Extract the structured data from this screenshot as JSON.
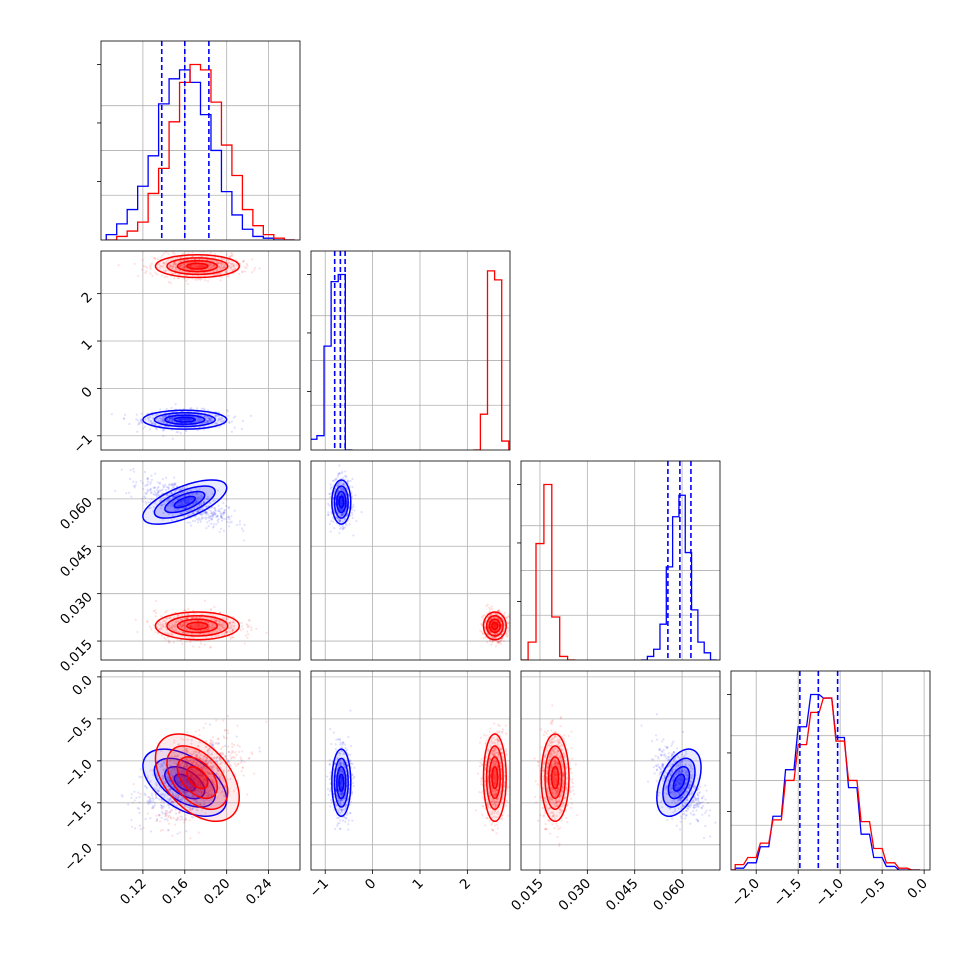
{
  "colors": {
    "series_a": "#ff0000",
    "series_b": "#0000ff",
    "grid": "#b0b0b0",
    "frame": "#000000"
  },
  "chart_data": {
    "type": "corner",
    "grid": true,
    "variables": [
      {
        "ticks": [
          "0.12",
          "0.16",
          "0.20",
          "0.24"
        ],
        "tick_values": [
          0.12,
          0.16,
          0.2,
          0.24
        ],
        "range": [
          0.08,
          0.27
        ]
      },
      {
        "ticks": [
          "−1",
          "0",
          "1",
          "2"
        ],
        "tick_values": [
          -1,
          0,
          1,
          2
        ],
        "range": [
          -1.3,
          2.9
        ]
      },
      {
        "ticks": [
          "0.015",
          "0.030",
          "0.045",
          "0.060"
        ],
        "tick_values": [
          0.015,
          0.03,
          0.045,
          0.06
        ],
        "range": [
          0.009,
          0.072
        ]
      },
      {
        "ticks": [
          "−2.0",
          "−1.5",
          "−1.0",
          "−0.5",
          "0.0"
        ],
        "tick_values": [
          -2.0,
          -1.5,
          -1.0,
          -0.5,
          0.0
        ],
        "range": [
          -2.3,
          0.07
        ]
      }
    ],
    "series": [
      {
        "color": "#ff0000",
        "means": [
          0.172,
          2.58,
          0.0198,
          -1.2
        ],
        "sds": [
          0.02,
          0.12,
          0.0022,
          0.26
        ],
        "corr": {
          "0-3": 0.45,
          "0-2": 0.0,
          "1-3": 0.0,
          "2-3": 0.0,
          "0-1": 0.0,
          "1-2": 0.0
        }
      },
      {
        "color": "#0000ff",
        "means": [
          0.16,
          -0.66,
          0.059,
          -1.26
        ],
        "sds": [
          0.02,
          0.1,
          0.0035,
          0.2
        ],
        "corr": {
          "0-2": -0.65,
          "0-3": 0.5,
          "2-3": -0.45,
          "0-1": 0.0,
          "1-2": 0.0,
          "1-3": 0.0
        }
      }
    ],
    "quantile_lines": [
      {
        "ticks_var": 0,
        "values": [
          0.138,
          0.16,
          0.183
        ]
      },
      {
        "ticks_var": 1,
        "values": [
          -0.8,
          -0.68,
          -0.58
        ]
      },
      {
        "ticks_var": 2,
        "values": [
          0.0555,
          0.0593,
          0.0628
        ]
      },
      {
        "ticks_var": 3,
        "values": [
          -1.48,
          -1.26,
          -1.03
        ]
      }
    ],
    "histograms": [
      {
        "series_a": [
          [
            0.09,
            0
          ],
          [
            0.1,
            0.02
          ],
          [
            0.11,
            0.05
          ],
          [
            0.12,
            0.1
          ],
          [
            0.13,
            0.26
          ],
          [
            0.14,
            0.4
          ],
          [
            0.15,
            0.66
          ],
          [
            0.16,
            0.88
          ],
          [
            0.17,
            0.98
          ],
          [
            0.18,
            0.95
          ],
          [
            0.19,
            0.77
          ],
          [
            0.2,
            0.53
          ],
          [
            0.21,
            0.36
          ],
          [
            0.22,
            0.17
          ],
          [
            0.23,
            0.08
          ],
          [
            0.24,
            0.03
          ],
          [
            0.25,
            0.01
          ],
          [
            0.26,
            0
          ]
        ],
        "series_b": [
          [
            0.09,
            0.03
          ],
          [
            0.1,
            0.09
          ],
          [
            0.11,
            0.17
          ],
          [
            0.12,
            0.3
          ],
          [
            0.13,
            0.47
          ],
          [
            0.14,
            0.76
          ],
          [
            0.15,
            0.9
          ],
          [
            0.16,
            0.95
          ],
          [
            0.17,
            0.88
          ],
          [
            0.18,
            0.7
          ],
          [
            0.19,
            0.5
          ],
          [
            0.2,
            0.27
          ],
          [
            0.21,
            0.14
          ],
          [
            0.22,
            0.06
          ],
          [
            0.23,
            0.02
          ],
          [
            0.24,
            0.01
          ],
          [
            0.25,
            0
          ],
          [
            0.26,
            0
          ]
        ]
      },
      {
        "series_a": [
          [
            2.2,
            0
          ],
          [
            2.35,
            0.2
          ],
          [
            2.5,
            1.0
          ],
          [
            2.65,
            0.95
          ],
          [
            2.8,
            0.05
          ]
        ],
        "series_b": [
          [
            -1.25,
            0.06
          ],
          [
            -1.1,
            0.08
          ],
          [
            -0.95,
            0.58
          ],
          [
            -0.8,
            0.94
          ],
          [
            -0.65,
            0.98
          ],
          [
            -0.5,
            0.0
          ]
        ]
      },
      {
        "series_a": [
          [
            0.01,
            0
          ],
          [
            0.0125,
            0.1
          ],
          [
            0.015,
            0.65
          ],
          [
            0.0175,
            0.98
          ],
          [
            0.02,
            0.24
          ],
          [
            0.0225,
            0.02
          ],
          [
            0.025,
            0
          ]
        ],
        "series_b": [
          [
            0.048,
            0
          ],
          [
            0.05,
            0.02
          ],
          [
            0.052,
            0.06
          ],
          [
            0.054,
            0.2
          ],
          [
            0.056,
            0.52
          ],
          [
            0.058,
            0.8
          ],
          [
            0.06,
            0.92
          ],
          [
            0.062,
            0.6
          ],
          [
            0.064,
            0.28
          ],
          [
            0.066,
            0.1
          ],
          [
            0.068,
            0.04
          ],
          [
            0.07,
            0
          ]
        ]
      },
      {
        "series_a": [
          [
            -2.3,
            0
          ],
          [
            -2.2,
            0.03
          ],
          [
            -2.05,
            0.07
          ],
          [
            -1.9,
            0.15
          ],
          [
            -1.75,
            0.28
          ],
          [
            -1.6,
            0.5
          ],
          [
            -1.45,
            0.7
          ],
          [
            -1.3,
            0.88
          ],
          [
            -1.15,
            0.96
          ],
          [
            -1.0,
            0.72
          ],
          [
            -0.85,
            0.5
          ],
          [
            -0.7,
            0.27
          ],
          [
            -0.55,
            0.12
          ],
          [
            -0.4,
            0.04
          ],
          [
            -0.25,
            0.01
          ],
          [
            -0.1,
            0
          ]
        ],
        "series_b": [
          [
            -2.3,
            0
          ],
          [
            -2.2,
            0.01
          ],
          [
            -2.05,
            0.04
          ],
          [
            -1.9,
            0.13
          ],
          [
            -1.75,
            0.3
          ],
          [
            -1.6,
            0.56
          ],
          [
            -1.45,
            0.8
          ],
          [
            -1.3,
            0.98
          ],
          [
            -1.15,
            0.96
          ],
          [
            -1.0,
            0.74
          ],
          [
            -0.85,
            0.46
          ],
          [
            -0.7,
            0.2
          ],
          [
            -0.55,
            0.07
          ],
          [
            -0.4,
            0.02
          ],
          [
            -0.25,
            0
          ],
          [
            -0.1,
            0
          ]
        ]
      }
    ]
  }
}
